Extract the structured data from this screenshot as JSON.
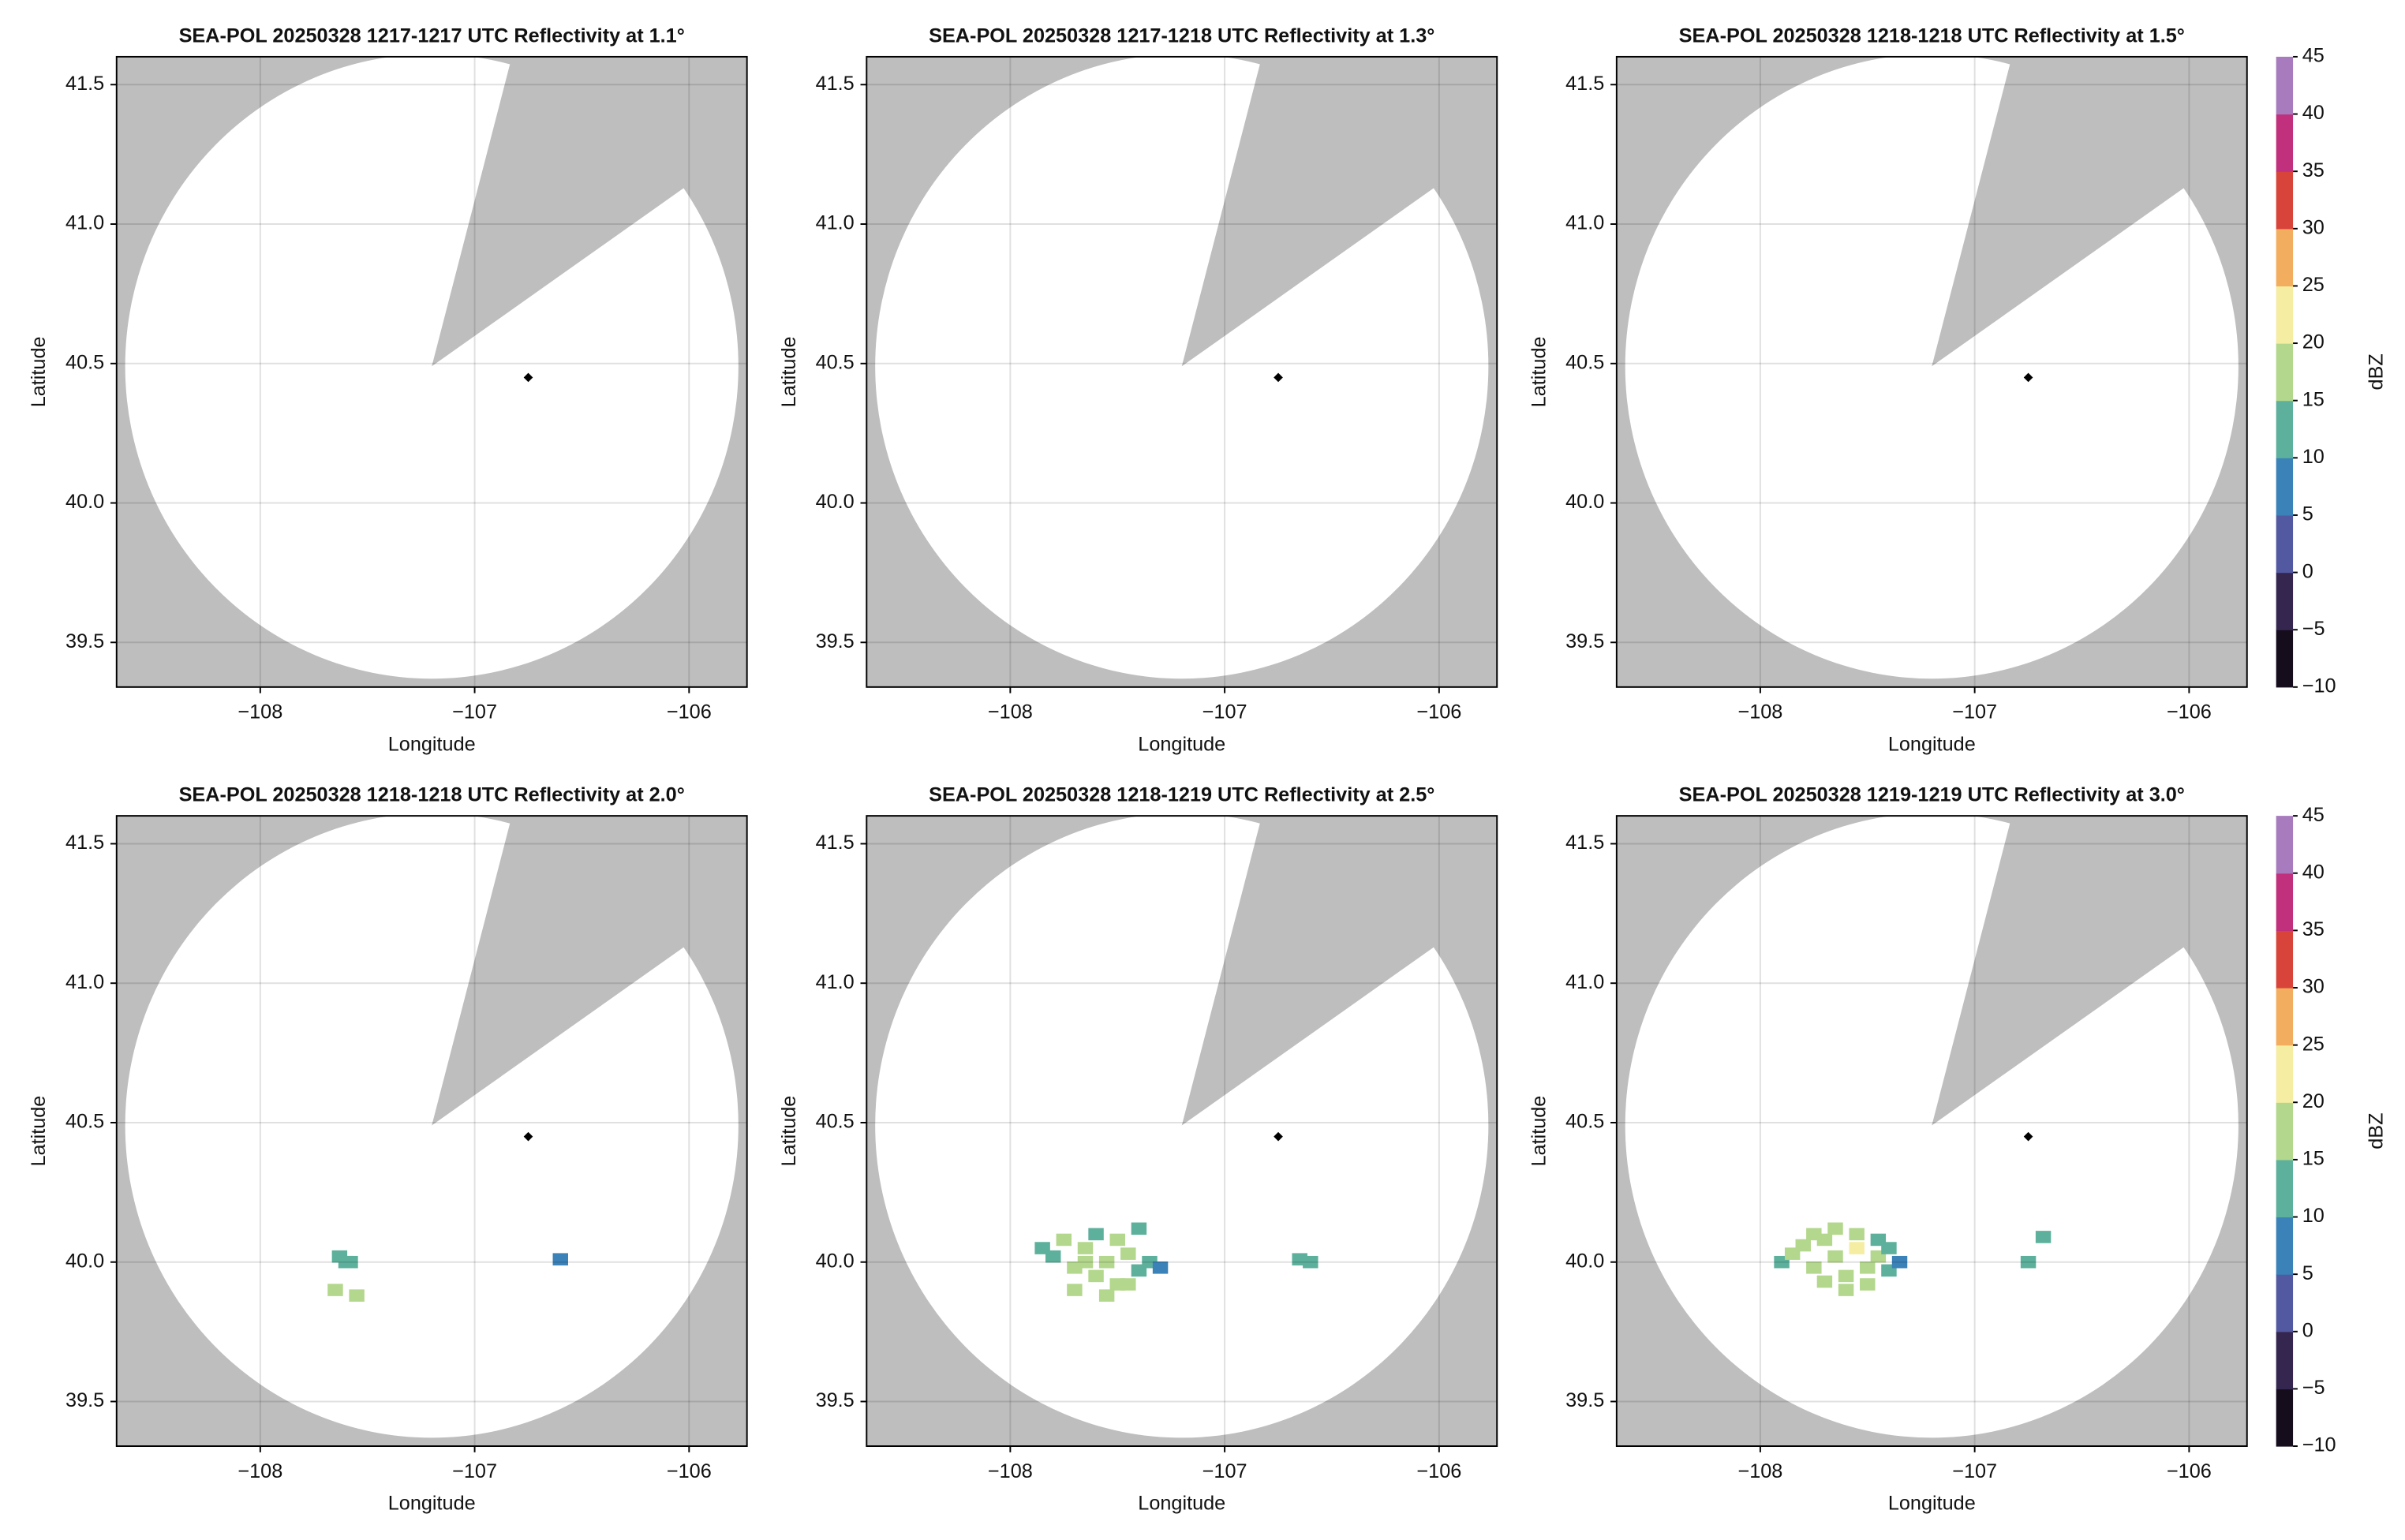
{
  "chart_data": [
    {
      "type": "radar",
      "title": "SEA-POL 20250328 1217-1217 UTC Reflectivity at 1.1°",
      "xlabel": "Longitude",
      "ylabel": "Latitude",
      "xlim": [
        -108.67,
        -105.73
      ],
      "ylim": [
        39.34,
        41.6
      ],
      "xticks": [
        {
          "value": -108,
          "label": "−108"
        },
        {
          "value": -107,
          "label": "−107"
        },
        {
          "value": -106,
          "label": "−106"
        }
      ],
      "yticks": [
        39.5,
        {
          "value": 40,
          "label": "40.0"
        },
        40.5,
        {
          "value": 41,
          "label": "41.0"
        },
        41.5
      ],
      "grid": true,
      "background": "#bebebe",
      "radar": {
        "center": [
          -107.2,
          40.49
        ],
        "radius": [
          1.43,
          1.12
        ],
        "blanked_sector": [
          [
            -106.85,
            41.53
          ],
          [
            -106.06,
            41.11
          ]
        ],
        "site": [
          -106.75,
          40.45
        ]
      }
    },
    {
      "type": "radar",
      "title": "SEA-POL 20250328 1217-1218 UTC Reflectivity at 1.3°",
      "xlabel": "Longitude",
      "ylabel": "Latitude",
      "xlim": [
        -108.67,
        -105.73
      ],
      "ylim": [
        39.34,
        41.6
      ],
      "xticks": [
        {
          "value": -108,
          "label": "−108"
        },
        {
          "value": -107,
          "label": "−107"
        },
        {
          "value": -106,
          "label": "−106"
        }
      ],
      "yticks": [
        39.5,
        {
          "value": 40,
          "label": "40.0"
        },
        40.5,
        {
          "value": 41,
          "label": "41.0"
        },
        41.5
      ],
      "grid": true,
      "background": "#bebebe",
      "radar": {
        "center": [
          -107.2,
          40.49
        ],
        "radius": [
          1.43,
          1.12
        ],
        "blanked_sector": [
          [
            -106.85,
            41.53
          ],
          [
            -106.06,
            41.11
          ]
        ],
        "site": [
          -106.75,
          40.45
        ]
      }
    },
    {
      "type": "radar",
      "title": "SEA-POL 20250328 1218-1218 UTC Reflectivity at 1.5°",
      "xlabel": "Longitude",
      "ylabel": "Latitude",
      "xlim": [
        -108.67,
        -105.73
      ],
      "ylim": [
        39.34,
        41.6
      ],
      "xticks": [
        {
          "value": -108,
          "label": "−108"
        },
        {
          "value": -107,
          "label": "−107"
        },
        {
          "value": -106,
          "label": "−106"
        }
      ],
      "yticks": [
        39.5,
        {
          "value": 40,
          "label": "40.0"
        },
        40.5,
        {
          "value": 41,
          "label": "41.0"
        },
        41.5
      ],
      "grid": true,
      "background": "#bebebe",
      "radar": {
        "center": [
          -107.2,
          40.49
        ],
        "radius": [
          1.43,
          1.12
        ],
        "blanked_sector": [
          [
            -106.85,
            41.53
          ],
          [
            -106.06,
            41.11
          ]
        ],
        "site": [
          -106.75,
          40.45
        ]
      },
      "colorbar": {
        "label": "dBZ",
        "lim": [
          -10,
          45
        ],
        "ticks": [
          {
            "value": -10,
            "label": "−10"
          },
          {
            "value": -5,
            "label": "−5"
          },
          0,
          5,
          10,
          15,
          20,
          25,
          30,
          35,
          40,
          45
        ],
        "colors": [
          "#150c1c",
          "#352650",
          "#5259a0",
          "#3b82b8",
          "#5cb09c",
          "#b3d78c",
          "#f4eda2",
          "#f2ad5e",
          "#d8443a",
          "#c0307c",
          "#a77bbd"
        ]
      }
    },
    {
      "type": "radar",
      "title": "SEA-POL 20250328 1218-1218 UTC Reflectivity at 2.0°",
      "xlabel": "Longitude",
      "ylabel": "Latitude",
      "xlim": [
        -108.67,
        -105.73
      ],
      "ylim": [
        39.34,
        41.6
      ],
      "xticks": [
        {
          "value": -108,
          "label": "−108"
        },
        {
          "value": -107,
          "label": "−107"
        },
        {
          "value": -106,
          "label": "−106"
        }
      ],
      "yticks": [
        39.5,
        {
          "value": 40,
          "label": "40.0"
        },
        40.5,
        {
          "value": 41,
          "label": "41.0"
        },
        41.5
      ],
      "grid": true,
      "background": "#bebebe",
      "radar": {
        "center": [
          -107.2,
          40.49
        ],
        "radius": [
          1.43,
          1.12
        ],
        "blanked_sector": [
          [
            -106.85,
            41.53
          ],
          [
            -106.06,
            41.11
          ]
        ],
        "site": [
          -106.75,
          40.45
        ]
      },
      "echoes": {
        "lon": [
          -107.63,
          -107.6,
          -107.58,
          -107.65,
          -107.55,
          -106.6
        ],
        "lat": [
          40.02,
          40.0,
          40.0,
          39.9,
          39.88,
          40.01
        ],
        "dbz": [
          12,
          10,
          14,
          15,
          16,
          9
        ]
      }
    },
    {
      "type": "radar",
      "title": "SEA-POL 20250328 1218-1219 UTC Reflectivity at 2.5°",
      "xlabel": "Longitude",
      "ylabel": "Latitude",
      "xlim": [
        -108.67,
        -105.73
      ],
      "ylim": [
        39.34,
        41.6
      ],
      "xticks": [
        {
          "value": -108,
          "label": "−108"
        },
        {
          "value": -107,
          "label": "−107"
        },
        {
          "value": -106,
          "label": "−106"
        }
      ],
      "yticks": [
        39.5,
        {
          "value": 40,
          "label": "40.0"
        },
        40.5,
        {
          "value": 41,
          "label": "41.0"
        },
        41.5
      ],
      "grid": true,
      "background": "#bebebe",
      "radar": {
        "center": [
          -107.2,
          40.49
        ],
        "radius": [
          1.43,
          1.12
        ],
        "blanked_sector": [
          [
            -106.85,
            41.53
          ],
          [
            -106.06,
            41.11
          ]
        ],
        "site": [
          -106.75,
          40.45
        ]
      },
      "echoes": {
        "lon": [
          -107.85,
          -107.8,
          -107.75,
          -107.7,
          -107.65,
          -107.6,
          -107.55,
          -107.5,
          -107.45,
          -107.4,
          -107.35,
          -107.3,
          -107.7,
          -107.6,
          -107.5,
          -107.4,
          -107.65,
          -107.55,
          -107.45,
          -106.65,
          -106.6
        ],
        "lat": [
          40.05,
          40.02,
          40.08,
          39.98,
          40.05,
          39.95,
          40.0,
          39.92,
          40.03,
          39.97,
          40.0,
          39.98,
          39.9,
          40.1,
          40.08,
          40.12,
          40.0,
          39.88,
          39.92,
          40.01,
          40.0
        ],
        "dbz": [
          12,
          14,
          16,
          15,
          18,
          17,
          19,
          16,
          15,
          11,
          10,
          9,
          16,
          14,
          18,
          13,
          19,
          17,
          15,
          12,
          10
        ]
      }
    },
    {
      "type": "radar",
      "title": "SEA-POL 20250328 1219-1219 UTC Reflectivity at 3.0°",
      "xlabel": "Longitude",
      "ylabel": "Latitude",
      "xlim": [
        -108.67,
        -105.73
      ],
      "ylim": [
        39.34,
        41.6
      ],
      "xticks": [
        {
          "value": -108,
          "label": "−108"
        },
        {
          "value": -107,
          "label": "−107"
        },
        {
          "value": -106,
          "label": "−106"
        }
      ],
      "yticks": [
        39.5,
        {
          "value": 40,
          "label": "40.0"
        },
        40.5,
        {
          "value": 41,
          "label": "41.0"
        },
        41.5
      ],
      "grid": true,
      "background": "#bebebe",
      "radar": {
        "center": [
          -107.2,
          40.49
        ],
        "radius": [
          1.43,
          1.12
        ],
        "blanked_sector": [
          [
            -106.85,
            41.53
          ],
          [
            -106.06,
            41.11
          ]
        ],
        "site": [
          -106.75,
          40.45
        ]
      },
      "echoes": {
        "lon": [
          -107.9,
          -107.85,
          -107.8,
          -107.75,
          -107.7,
          -107.65,
          -107.6,
          -107.55,
          -107.5,
          -107.45,
          -107.4,
          -107.35,
          -107.75,
          -107.65,
          -107.55,
          -107.45,
          -107.7,
          -107.6,
          -107.5,
          -107.4,
          -106.75,
          -106.68
        ],
        "lat": [
          40.0,
          40.03,
          40.06,
          39.98,
          40.08,
          40.02,
          39.95,
          40.05,
          39.98,
          40.02,
          39.97,
          40.0,
          40.1,
          40.12,
          40.1,
          40.08,
          39.93,
          39.9,
          39.92,
          40.05,
          40.0,
          40.09
        ],
        "dbz": [
          13,
          15,
          16,
          17,
          18,
          19,
          17,
          20,
          18,
          16,
          12,
          9,
          15,
          17,
          19,
          14,
          16,
          15,
          17,
          11,
          14,
          10
        ]
      },
      "colorbar": {
        "label": "dBZ",
        "lim": [
          -10,
          45
        ],
        "ticks": [
          {
            "value": -10,
            "label": "−10"
          },
          {
            "value": -5,
            "label": "−5"
          },
          0,
          5,
          10,
          15,
          20,
          25,
          30,
          35,
          40,
          45
        ],
        "colors": [
          "#150c1c",
          "#352650",
          "#5259a0",
          "#3b82b8",
          "#5cb09c",
          "#b3d78c",
          "#f4eda2",
          "#f2ad5e",
          "#d8443a",
          "#c0307c",
          "#a77bbd"
        ]
      }
    }
  ]
}
